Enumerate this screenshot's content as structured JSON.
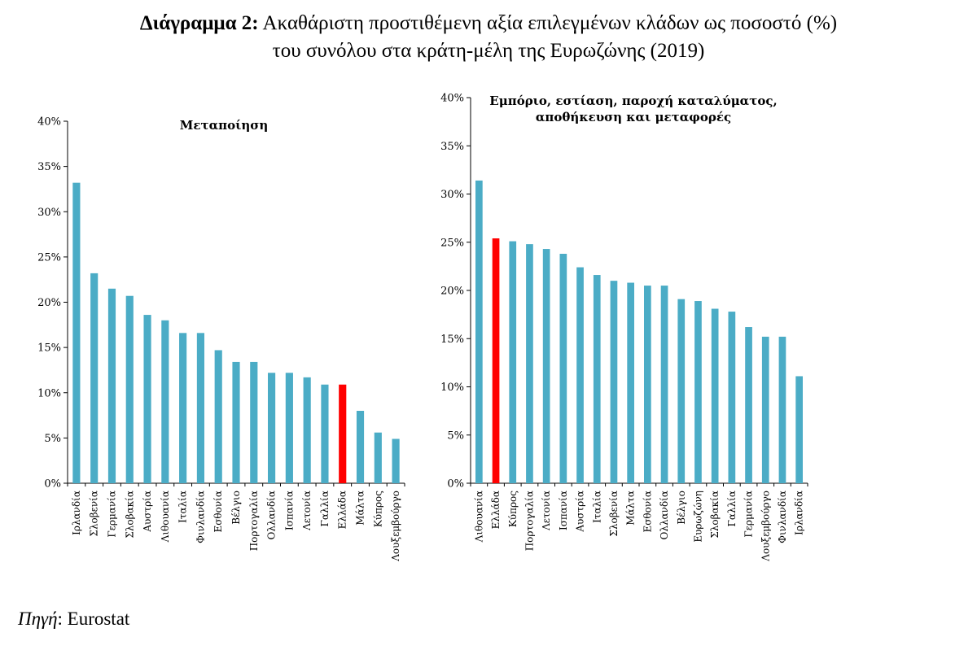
{
  "header": {
    "prefix": "Διάγραμμα 2:",
    "line1": "Ακαθάριστη προστιθέμενη αξία επιλεγμένων κλάδων ως ποσοστό (%)",
    "line2": "του συνόλου στα κράτη-μέλη της Ευρωζώνης (2019)"
  },
  "source": {
    "label": "Πηγή",
    "text": ": Eurostat"
  },
  "colors": {
    "bar": "#4BACC6",
    "highlight": "#FF0000",
    "axis": "#000000"
  },
  "chart_data": [
    {
      "type": "bar",
      "title": "Μεταποίηση",
      "xlabel": "",
      "ylabel": "",
      "ylim": [
        0,
        40
      ],
      "yticks": [
        "0%",
        "5%",
        "10%",
        "15%",
        "20%",
        "25%",
        "30%",
        "35%",
        "40%"
      ],
      "highlight": "Ελλάδα",
      "grid": false,
      "categories": [
        "Ιρλανδία",
        "Σλοβενία",
        "Γερμανία",
        "Σλοβακία",
        "Αυστρία",
        "Λιθουανία",
        "Ιταλία",
        "Φινλανδία",
        "Εσθονία",
        "Βέλγιο",
        "Πορτογαλία",
        "Ολλανδία",
        "Ισπανία",
        "Λετονία",
        "Γαλλία",
        "Ελλάδα",
        "Μάλτα",
        "Κύπρος",
        "Λουξεμβούργο"
      ],
      "values": [
        33.2,
        23.2,
        21.5,
        20.7,
        18.6,
        18.0,
        16.6,
        16.6,
        14.7,
        13.4,
        13.4,
        12.2,
        12.2,
        11.7,
        10.9,
        10.9,
        8.0,
        5.6,
        4.9
      ]
    },
    {
      "type": "bar",
      "title": "Εμπόριο, εστίαση, παροχή καταλύματος, αποθήκευση και μεταφορές",
      "xlabel": "",
      "ylabel": "",
      "ylim": [
        0,
        40
      ],
      "yticks": [
        "0%",
        "5%",
        "10%",
        "15%",
        "20%",
        "25%",
        "30%",
        "35%",
        "40%"
      ],
      "highlight": "Ελλάδα",
      "grid": false,
      "categories": [
        "Λιθουανία",
        "Ελλάδα",
        "Κύπρος",
        "Πορτογαλία",
        "Λετονία",
        "Ισπανία",
        "Αυστρία",
        "Ιταλία",
        "Σλοβενία",
        "Μάλτα",
        "Εσθονία",
        "Ολλανδία",
        "Βέλγιο",
        "Ευρωζώνη",
        "Σλοβακία",
        "Γαλλία",
        "Γερμανία",
        "Λουξεμβούργο",
        "Φινλανδία",
        "Ιρλανδία"
      ],
      "values": [
        31.4,
        25.4,
        25.1,
        24.8,
        24.3,
        23.8,
        22.4,
        21.6,
        21.0,
        20.8,
        20.5,
        20.5,
        19.1,
        18.9,
        18.1,
        17.8,
        16.2,
        15.2,
        15.2,
        11.1
      ]
    }
  ]
}
